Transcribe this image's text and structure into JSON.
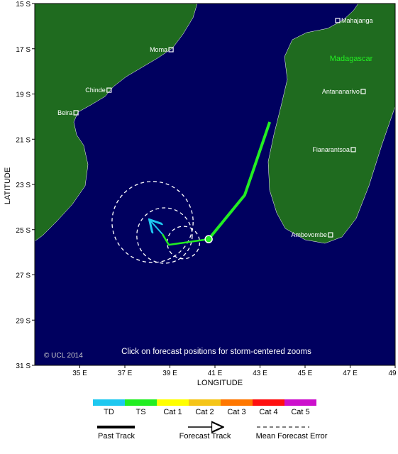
{
  "map": {
    "xlabel": "LONGITUDE",
    "ylabel": "LATITUDE",
    "xlim": [
      33,
      49
    ],
    "ylim": [
      -31,
      -15
    ],
    "xticks": [
      {
        "value": 35,
        "label": "35 E"
      },
      {
        "value": 37,
        "label": "37 E"
      },
      {
        "value": 39,
        "label": "39 E"
      },
      {
        "value": 41,
        "label": "41 E"
      },
      {
        "value": 43,
        "label": "43 E"
      },
      {
        "value": 45,
        "label": "45 E"
      },
      {
        "value": 47,
        "label": "47 E"
      },
      {
        "value": 49,
        "label": "49"
      }
    ],
    "yticks": [
      {
        "value": -15,
        "label": "15 S"
      },
      {
        "value": -17,
        "label": "17 S"
      },
      {
        "value": -19,
        "label": "19 S"
      },
      {
        "value": -21,
        "label": "21 S"
      },
      {
        "value": -23,
        "label": "23 S"
      },
      {
        "value": -25,
        "label": "25 S"
      },
      {
        "value": -27,
        "label": "27 S"
      },
      {
        "value": -29,
        "label": "29 S"
      },
      {
        "value": -31,
        "label": "31 S"
      }
    ],
    "land_label": "Madagascar",
    "copyright": "© UCL 2014",
    "note": "Click on forecast positions for storm-centered zooms",
    "cities": [
      {
        "name": "Mahajanga",
        "lon": 46.45,
        "lat": -15.75,
        "side": "right"
      },
      {
        "name": "Moma",
        "lon": 39.05,
        "lat": -17.04,
        "side": "left"
      },
      {
        "name": "Chinde",
        "lon": 36.3,
        "lat": -18.83,
        "side": "left"
      },
      {
        "name": "Beira",
        "lon": 34.83,
        "lat": -19.83,
        "side": "left"
      },
      {
        "name": "Antananarivo",
        "lon": 47.58,
        "lat": -18.89,
        "side": "left"
      },
      {
        "name": "Fianarantsoa",
        "lon": 47.14,
        "lat": -21.46,
        "side": "left"
      },
      {
        "name": "Ambovombe",
        "lon": 46.13,
        "lat": -25.23,
        "side": "left"
      }
    ],
    "past_track": {
      "color": "#22ee22",
      "lon": [
        43.43,
        42.7,
        42.32,
        40.72
      ],
      "lat": [
        -20.24,
        -22.37,
        -23.47,
        -25.42
      ]
    },
    "forecast_track": {
      "color": "#22ee22",
      "lon": [
        40.72,
        38.95,
        38.67
      ],
      "lat": [
        -25.42,
        -25.67,
        -25.2
      ]
    },
    "forecast_tail": {
      "color": "#1ec8f0",
      "lon": [
        38.67,
        38.13
      ],
      "lat": [
        -25.2,
        -24.6
      ]
    },
    "error_circles": [
      {
        "lon": 39.6,
        "lat": -25.57,
        "radius": 0.72
      },
      {
        "lon": 38.76,
        "lat": -25.26,
        "radius": 1.23
      },
      {
        "lon": 38.23,
        "lat": -24.66,
        "radius": 1.8
      }
    ]
  },
  "legend": {
    "categories": [
      {
        "name": "TD",
        "color": "#1ec8f0"
      },
      {
        "name": "TS",
        "color": "#22ee22"
      },
      {
        "name": "Cat 1",
        "color": "#ffff00"
      },
      {
        "name": "Cat 2",
        "color": "#f5c518"
      },
      {
        "name": "Cat 3",
        "color": "#ff7700"
      },
      {
        "name": "Cat 4",
        "color": "#ff1010"
      },
      {
        "name": "Cat 5",
        "color": "#cc10cc"
      }
    ],
    "past_track": "Past Track",
    "forecast_track": "Forecast Track",
    "mean_error": "Mean Forecast Error"
  }
}
